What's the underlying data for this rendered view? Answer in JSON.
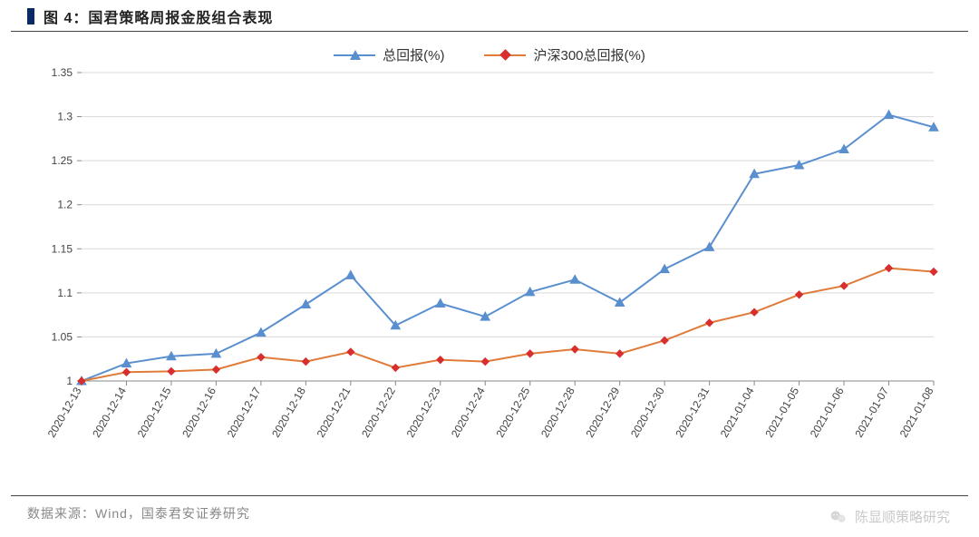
{
  "title": "图 4：国君策略周报金股组合表现",
  "source": "数据来源：Wind，国泰君安证券研究",
  "watermark": "陈显顺策略研究",
  "chart": {
    "type": "line",
    "background_color": "#ffffff",
    "grid_color": "#d9d9d9",
    "axis_color": "#888888",
    "tick_font_size": 12,
    "tick_color": "#444444",
    "ylim": [
      1,
      1.35
    ],
    "ytick_step": 0.05,
    "yticks": [
      1,
      1.05,
      1.1,
      1.15,
      1.2,
      1.25,
      1.3,
      1.35
    ],
    "x_labels": [
      "2020-12-13",
      "2020-12-14",
      "2020-12-15",
      "2020-12-16",
      "2020-12-17",
      "2020-12-18",
      "2020-12-21",
      "2020-12-22",
      "2020-12-23",
      "2020-12-24",
      "2020-12-25",
      "2020-12-28",
      "2020-12-29",
      "2020-12-30",
      "2020-12-31",
      "2021-01-04",
      "2021-01-05",
      "2021-01-06",
      "2021-01-07",
      "2021-01-08"
    ],
    "x_label_rotation": -60,
    "legend_position": "top-center",
    "series": [
      {
        "name": "总回报(%)",
        "color": "#5a8fcf",
        "line_width": 2,
        "marker": "triangle",
        "marker_size": 10,
        "values": [
          1.0,
          1.02,
          1.028,
          1.031,
          1.055,
          1.087,
          1.12,
          1.063,
          1.088,
          1.073,
          1.101,
          1.115,
          1.089,
          1.127,
          1.152,
          1.235,
          1.245,
          1.263,
          1.302,
          1.288
        ]
      },
      {
        "name": "沪深300总回报(%)",
        "color": "#e07b3a",
        "marker_color": "#d82e2e",
        "line_width": 2,
        "marker": "diamond",
        "marker_size": 8,
        "values": [
          1.0,
          1.01,
          1.011,
          1.013,
          1.027,
          1.022,
          1.033,
          1.015,
          1.024,
          1.022,
          1.031,
          1.036,
          1.031,
          1.046,
          1.066,
          1.078,
          1.098,
          1.108,
          1.128,
          1.124
        ]
      }
    ]
  }
}
